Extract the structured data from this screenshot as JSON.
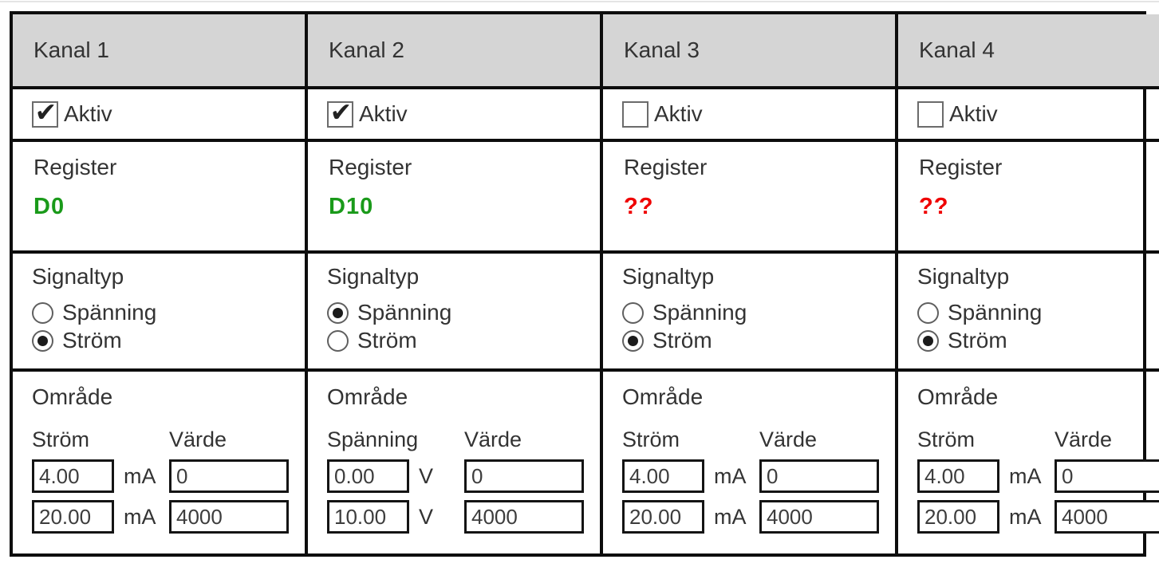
{
  "colors": {
    "header_bg": "#d5d5d5",
    "border": "#0d0d0d",
    "register_ok": "#1a9a1a",
    "register_missing": "#ef0000",
    "text": "#333333"
  },
  "icons": {
    "checkmark": "✔"
  },
  "channels": [
    {
      "title": "Kanal 1",
      "active": {
        "label": "Aktiv",
        "checked": true
      },
      "register": {
        "label": "Register",
        "value": "D0",
        "status": "ok"
      },
      "signal": {
        "label": "Signaltyp",
        "options": [
          {
            "label": "Spänning",
            "selected": false
          },
          {
            "label": "Ström",
            "selected": true
          }
        ]
      },
      "range": {
        "label": "Område",
        "quantity_label": "Ström",
        "value_label": "Värde",
        "unit": "mA",
        "rows": [
          {
            "range": "4.00",
            "value": "0"
          },
          {
            "range": "20.00",
            "value": "4000"
          }
        ]
      }
    },
    {
      "title": "Kanal 2",
      "active": {
        "label": "Aktiv",
        "checked": true
      },
      "register": {
        "label": "Register",
        "value": "D10",
        "status": "ok"
      },
      "signal": {
        "label": "Signaltyp",
        "options": [
          {
            "label": "Spänning",
            "selected": true
          },
          {
            "label": "Ström",
            "selected": false
          }
        ]
      },
      "range": {
        "label": "Område",
        "quantity_label": "Spänning",
        "value_label": "Värde",
        "unit": "V",
        "rows": [
          {
            "range": "0.00",
            "value": "0"
          },
          {
            "range": "10.00",
            "value": "4000"
          }
        ]
      }
    },
    {
      "title": "Kanal 3",
      "active": {
        "label": "Aktiv",
        "checked": false
      },
      "register": {
        "label": "Register",
        "value": "??",
        "status": "missing"
      },
      "signal": {
        "label": "Signaltyp",
        "options": [
          {
            "label": "Spänning",
            "selected": false
          },
          {
            "label": "Ström",
            "selected": true
          }
        ]
      },
      "range": {
        "label": "Område",
        "quantity_label": "Ström",
        "value_label": "Värde",
        "unit": "mA",
        "rows": [
          {
            "range": "4.00",
            "value": "0"
          },
          {
            "range": "20.00",
            "value": "4000"
          }
        ]
      }
    },
    {
      "title": "Kanal 4",
      "active": {
        "label": "Aktiv",
        "checked": false
      },
      "register": {
        "label": "Register",
        "value": "??",
        "status": "missing"
      },
      "signal": {
        "label": "Signaltyp",
        "options": [
          {
            "label": "Spänning",
            "selected": false
          },
          {
            "label": "Ström",
            "selected": true
          }
        ]
      },
      "range": {
        "label": "Område",
        "quantity_label": "Ström",
        "value_label": "Värde",
        "unit": "mA",
        "rows": [
          {
            "range": "4.00",
            "value": "0"
          },
          {
            "range": "20.00",
            "value": "4000"
          }
        ]
      }
    }
  ]
}
